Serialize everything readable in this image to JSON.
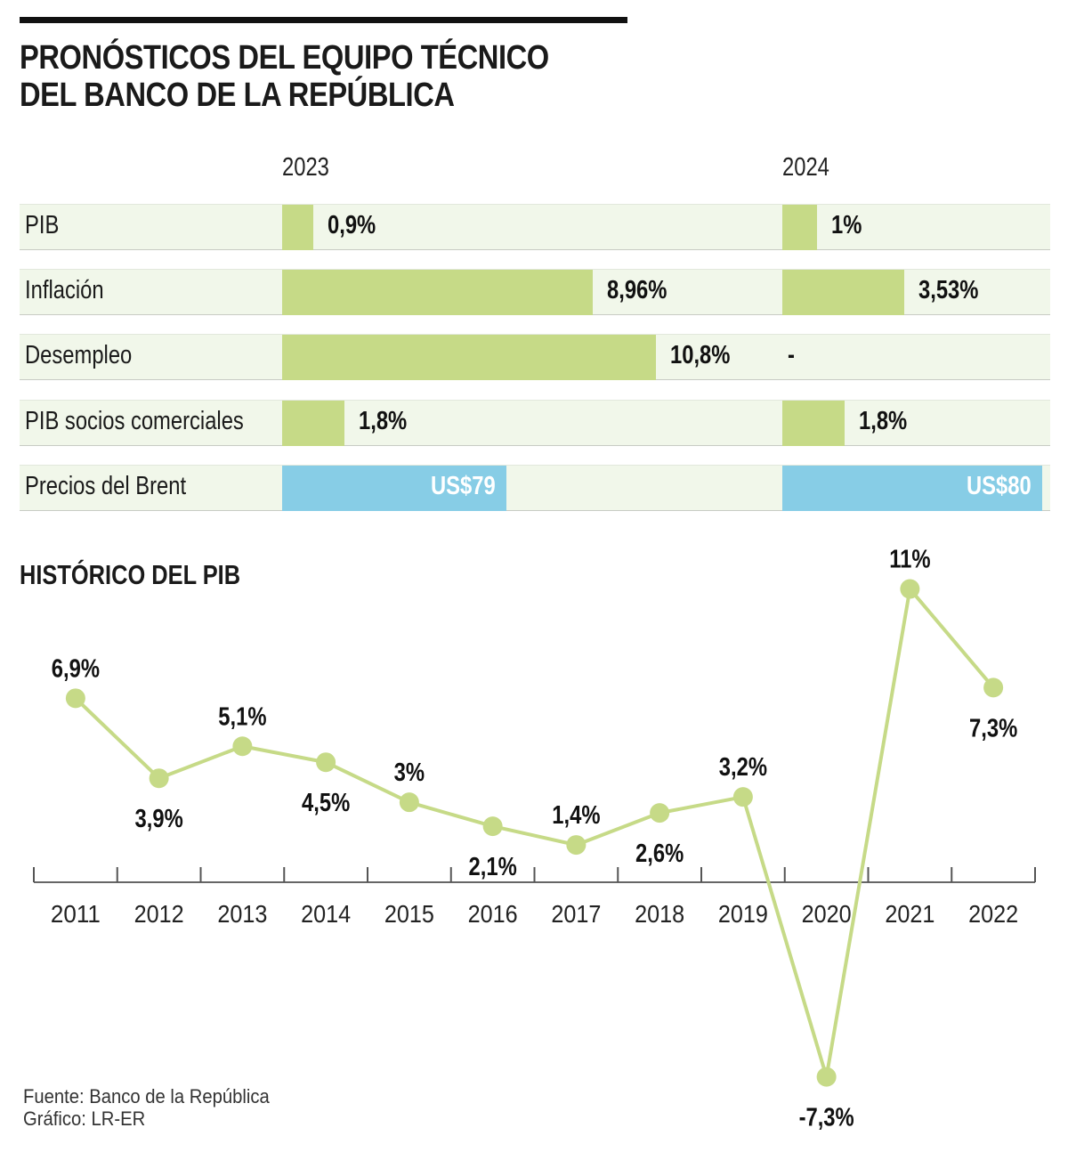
{
  "header": {
    "title_line1": "PRONÓSTICOS DEL EQUIPO TÉCNICO",
    "title_line2": "DEL BANCO DE LA REPÚBLICA"
  },
  "forecast_table": {
    "years": [
      "2023",
      "2024"
    ],
    "rows": [
      {
        "label": "PIB",
        "unit": "percent",
        "values": [
          0.9,
          1.0
        ],
        "display": [
          "0,9%",
          "1%"
        ],
        "color": "#c6da87"
      },
      {
        "label": "Inflación",
        "unit": "percent",
        "values": [
          8.96,
          3.53
        ],
        "display": [
          "8,96%",
          "3,53%"
        ],
        "color": "#c6da87"
      },
      {
        "label": "Desempleo",
        "unit": "percent",
        "values": [
          10.8,
          null
        ],
        "display": [
          "10,8%",
          "-"
        ],
        "color": "#c6da87"
      },
      {
        "label": "PIB socios comerciales",
        "unit": "percent",
        "values": [
          1.8,
          1.8
        ],
        "display": [
          "1,8%",
          "1,8%"
        ],
        "color": "#c6da87"
      },
      {
        "label": "Precios del Brent",
        "unit": "usd",
        "values": [
          79,
          80
        ],
        "display": [
          "US$79",
          "US$80"
        ],
        "color": "#87cde6"
      }
    ]
  },
  "chart_data": {
    "type": "line",
    "title": "HISTÓRICO DEL PIB",
    "xlabel": "",
    "ylabel": "",
    "categories": [
      "2011",
      "2012",
      "2013",
      "2014",
      "2015",
      "2016",
      "2017",
      "2018",
      "2019",
      "2020",
      "2021",
      "2022"
    ],
    "series": [
      {
        "name": "PIB",
        "values": [
          6.9,
          3.9,
          5.1,
          4.5,
          3.0,
          2.1,
          1.4,
          2.6,
          3.2,
          -7.3,
          11.0,
          7.3
        ],
        "labels": [
          "6,9%",
          "3,9%",
          "5,1%",
          "4,5%",
          "3%",
          "2,1%",
          "1,4%",
          "2,6%",
          "3,2%",
          "-7,3%",
          "11%",
          "7,3%"
        ],
        "label_position": [
          "above",
          "below",
          "above",
          "below",
          "above",
          "below",
          "above",
          "below",
          "above",
          "below",
          "above",
          "below"
        ],
        "color": "#c6da87"
      }
    ],
    "ylim": [
      -7.3,
      11
    ],
    "grid": false,
    "legend": "none"
  },
  "footer": {
    "source": "Fuente: Banco de la República",
    "credit": "Gráfico: LR-ER"
  }
}
